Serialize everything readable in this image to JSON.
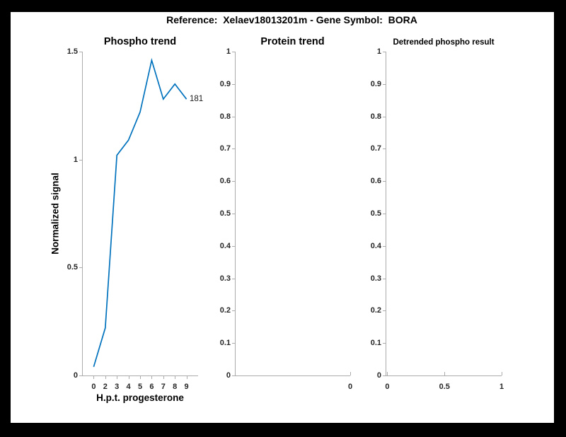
{
  "figure": {
    "title": "Reference:  Xelaev18013201m - Gene Symbol:  BORA",
    "background_color": "#ffffff",
    "border_color": "#000000"
  },
  "colors": {
    "line_blue": "#0072BD",
    "axis_line": "#ababab",
    "tick_text": "#262626"
  },
  "chart_data": [
    {
      "type": "line",
      "title": "Phospho trend",
      "xlabel": "H.p.t. progesterone",
      "ylabel": "Normalized signal",
      "x_tick_labels": [
        "0",
        "2",
        "3",
        "4",
        "5",
        "6",
        "7",
        "8",
        "9"
      ],
      "x": [
        0,
        2,
        3,
        4,
        5,
        6,
        7,
        8,
        9
      ],
      "values": [
        0.04,
        0.22,
        1.02,
        1.09,
        1.22,
        1.46,
        1.28,
        1.35,
        1.28
      ],
      "ylim": [
        0,
        1.5
      ],
      "yticks": [
        0,
        0.5,
        1,
        1.5
      ],
      "ytick_labels": [
        "0",
        "0.5",
        "1",
        "1.5"
      ],
      "end_label": "181",
      "line_color": "#0072BD",
      "grid": false,
      "legend": null
    },
    {
      "type": "line",
      "title": "Protein trend",
      "xlabel": "",
      "ylabel": "",
      "x_tick_labels": [
        "0"
      ],
      "x": [],
      "values": [],
      "ylim": [
        0,
        1
      ],
      "yticks": [
        0,
        0.1,
        0.2,
        0.3,
        0.4,
        0.5,
        0.6,
        0.7,
        0.8,
        0.9,
        1
      ],
      "ytick_labels": [
        "0",
        "0.1",
        "0.2",
        "0.3",
        "0.4",
        "0.5",
        "0.6",
        "0.7",
        "0.8",
        "0.9",
        "1"
      ],
      "grid": false,
      "legend": null
    },
    {
      "type": "line",
      "title": "Detrended phospho result",
      "xlabel": "",
      "ylabel": "",
      "x_tick_labels": [
        "0",
        "0.5",
        "1"
      ],
      "x": [],
      "values": [],
      "ylim": [
        0,
        1
      ],
      "yticks": [
        0,
        0.1,
        0.2,
        0.3,
        0.4,
        0.5,
        0.6,
        0.7,
        0.8,
        0.9,
        1
      ],
      "ytick_labels": [
        "0",
        "0.1",
        "0.2",
        "0.3",
        "0.4",
        "0.5",
        "0.6",
        "0.7",
        "0.8",
        "0.9",
        "1"
      ],
      "xticks": [
        0,
        0.5,
        1
      ],
      "grid": false,
      "legend": null
    }
  ]
}
